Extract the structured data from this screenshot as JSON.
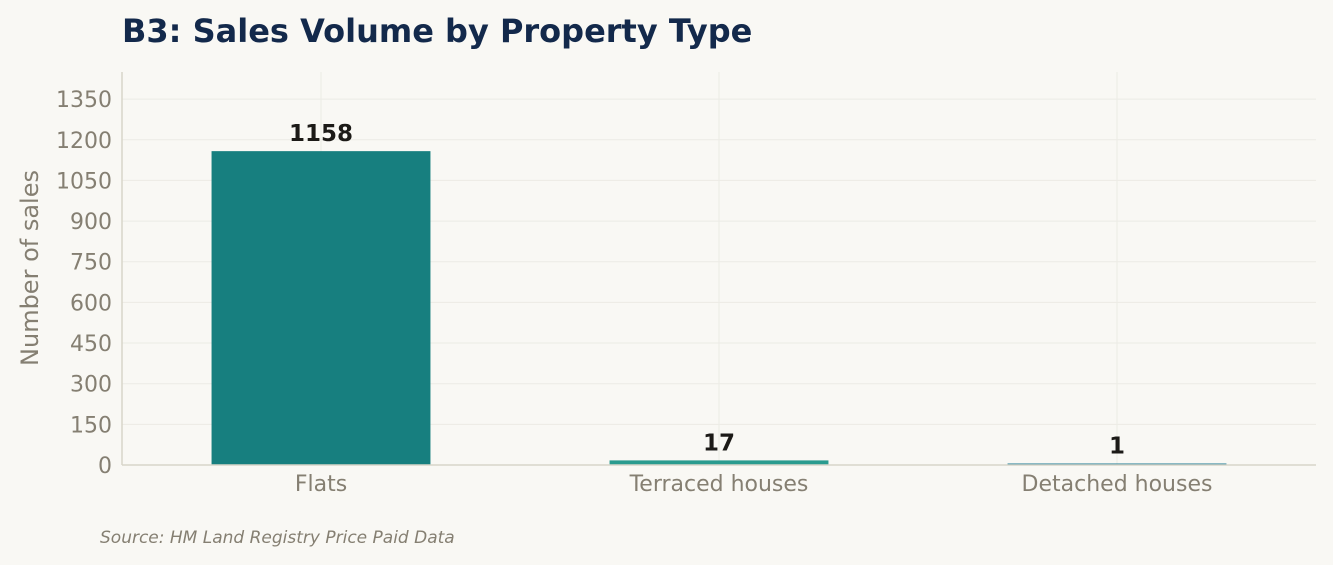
{
  "chart_data": {
    "type": "bar",
    "title": "B3: Sales Volume by Property Type",
    "xlabel": "",
    "ylabel": "Number of sales",
    "categories": [
      "Flats",
      "Terraced houses",
      "Detached houses"
    ],
    "values": [
      1158,
      17,
      1
    ],
    "data_labels": [
      "1158",
      "17",
      "1"
    ],
    "bar_colors": [
      "#177f7f",
      "#2a9b8f",
      "#1b7a94"
    ],
    "ylim": [
      0,
      1450
    ],
    "yticks": [
      0,
      150,
      300,
      450,
      600,
      750,
      900,
      1050,
      1200,
      1350
    ],
    "grid": true,
    "legend": "none"
  },
  "source": "Source: HM Land Registry Price Paid Data",
  "colors": {
    "background": "#f9f8f4",
    "title": "#13294b",
    "axis_text": "#857f72",
    "grid": "#ecebe5"
  }
}
